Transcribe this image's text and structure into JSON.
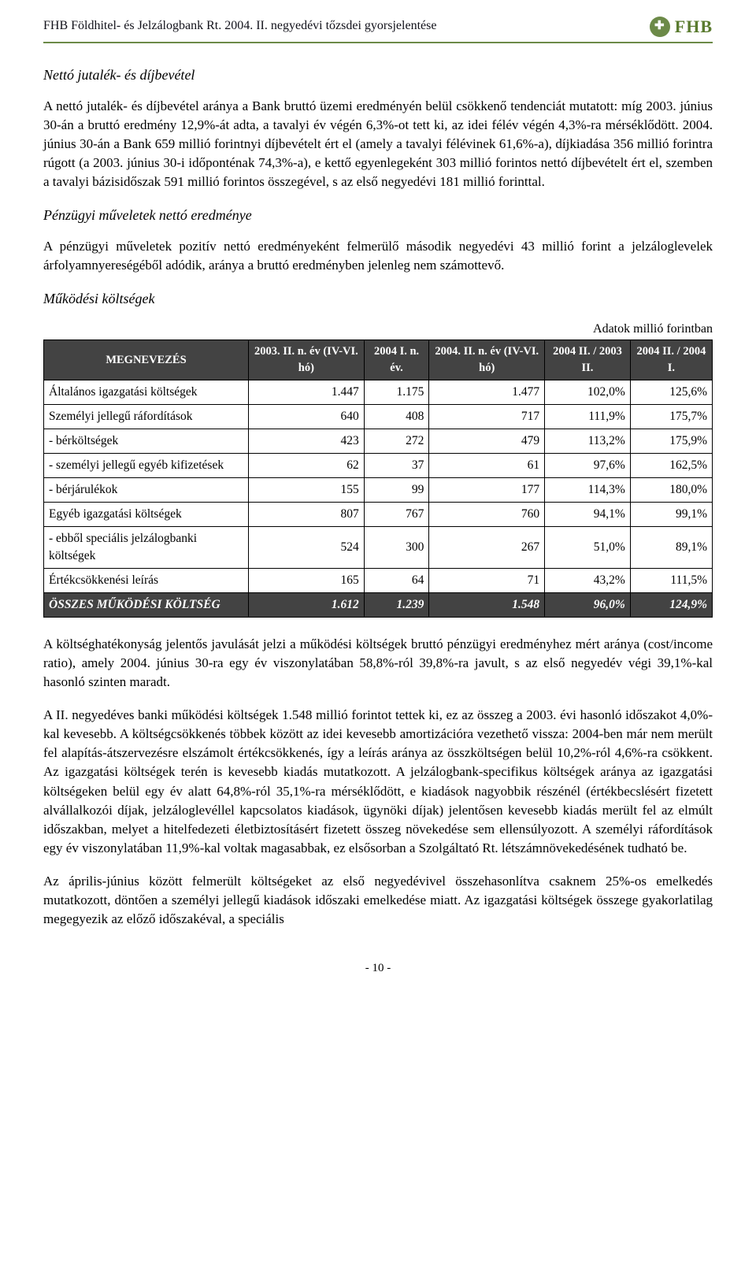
{
  "header": {
    "text": "FHB Földhitel- és Jelzálogbank Rt. 2004. II. negyedévi tőzsdei gyorsjelentése",
    "logo_text": "FHB",
    "logo_icon_glyph": "✚"
  },
  "section1": {
    "title": "Nettó jutalék- és díjbevétel",
    "para": "A nettó jutalék- és díjbevétel aránya a Bank bruttó üzemi eredményén belül csökkenő tendenciát mutatott: míg 2003. június 30-án a bruttó eredmény 12,9%-át adta, a tavalyi év végén 6,3%-ot tett ki, az idei félév végén 4,3%-ra mérséklődött. 2004. június 30-án a Bank 659 millió forintnyi díjbevételt ért el (amely a tavalyi félévinek 61,6%-a), díjkiadása 356 millió forintra rúgott (a 2003. június 30-i időponténak 74,3%-a), e kettő egyenlegeként 303 millió forintos nettó díjbevételt ért el, szemben a tavalyi bázisidőszak 591 millió forintos összegével, s az első negyedévi 181 millió forinttal."
  },
  "section2": {
    "title": "Pénzügyi műveletek nettó eredménye",
    "para": "A pénzügyi műveletek pozitív nettó eredményeként felmerülő második negyedévi 43 millió forint a jelzáloglevelek árfolyamnyereségéből adódik, aránya a bruttó eredményben jelenleg nem számottevő."
  },
  "section3": {
    "title": "Működési költségek",
    "unit_label": "Adatok millió forintban",
    "table": {
      "type": "table",
      "header_bg": "#434343",
      "header_fg": "#ffffff",
      "columns": [
        "MEGNEVEZÉS",
        "2003. II. n. év (IV-VI. hó)",
        "2004 I. n. év.",
        "2004. II. n. év (IV-VI. hó)",
        "2004 II. / 2003 II.",
        "2004 II. / 2004 I."
      ],
      "rows": [
        [
          "Általános igazgatási költségek",
          "1.447",
          "1.175",
          "1.477",
          "102,0%",
          "125,6%"
        ],
        [
          "Személyi jellegű ráfordítások",
          "640",
          "408",
          "717",
          "111,9%",
          "175,7%"
        ],
        [
          "- bérköltségek",
          "423",
          "272",
          "479",
          "113,2%",
          "175,9%"
        ],
        [
          "- személyi jellegű egyéb kifizetések",
          "62",
          "37",
          "61",
          "97,6%",
          "162,5%"
        ],
        [
          "- bérjárulékok",
          "155",
          "99",
          "177",
          "114,3%",
          "180,0%"
        ],
        [
          "Egyéb igazgatási költségek",
          "807",
          "767",
          "760",
          "94,1%",
          "99,1%"
        ],
        [
          "- ebből speciális jelzálogbanki költségek",
          "524",
          "300",
          "267",
          "51,0%",
          "89,1%"
        ],
        [
          "Értékcsökkenési leírás",
          "165",
          "64",
          "71",
          "43,2%",
          "111,5%"
        ]
      ],
      "total_row": [
        "ÖSSZES MŰKÖDÉSI KÖLTSÉG",
        "1.612",
        "1.239",
        "1.548",
        "96,0%",
        "124,9%"
      ]
    }
  },
  "para_after_table_1": "A költséghatékonyság jelentős javulását jelzi a működési költségek bruttó pénzügyi eredményhez mért aránya (cost/income ratio), amely 2004. június 30-ra egy év viszonylatában 58,8%-ról 39,8%-ra javult, s az első negyedév végi 39,1%-kal hasonló szinten maradt.",
  "para_after_table_2": "A II. negyedéves banki működési költségek 1.548 millió forintot tettek ki, ez az összeg a 2003. évi hasonló időszakot 4,0%-kal kevesebb. A költségcsökkenés többek között az idei kevesebb amortizációra vezethető vissza: 2004-ben már nem merült fel alapítás-átszervezésre elszámolt értékcsökkenés, így a leírás aránya az összköltségen belül 10,2%-ról 4,6%-ra csökkent. Az igazgatási költségek terén is kevesebb kiadás mutatkozott. A jelzálogbank-specifikus költségek aránya az igazgatási költségeken belül egy év alatt 64,8%-ról 35,1%-ra mérséklődött, e kiadások nagyobbik részénél (értékbecslésért fizetett alvállalkozói díjak, jelzáloglevéllel kapcsolatos kiadások, ügynöki díjak) jelentősen kevesebb kiadás merült fel az elmúlt időszakban, melyet a hitelfedezeti életbiztosításért fizetett összeg növekedése sem ellensúlyozott. A személyi ráfordítások egy év viszonylatában 11,9%-kal voltak magasabbak, ez elsősorban a Szolgáltató Rt. létszámnövekedésének tudható be.",
  "para_after_table_3": "Az április-június között felmerült költségeket az első negyedévivel összehasonlítva csaknem 25%-os emelkedés mutatkozott, döntően a személyi jellegű kiadások időszaki emelkedése miatt. Az igazgatási költségek összege gyakorlatilag megegyezik az előző időszakéval, a speciális",
  "page_number": "- 10 -"
}
